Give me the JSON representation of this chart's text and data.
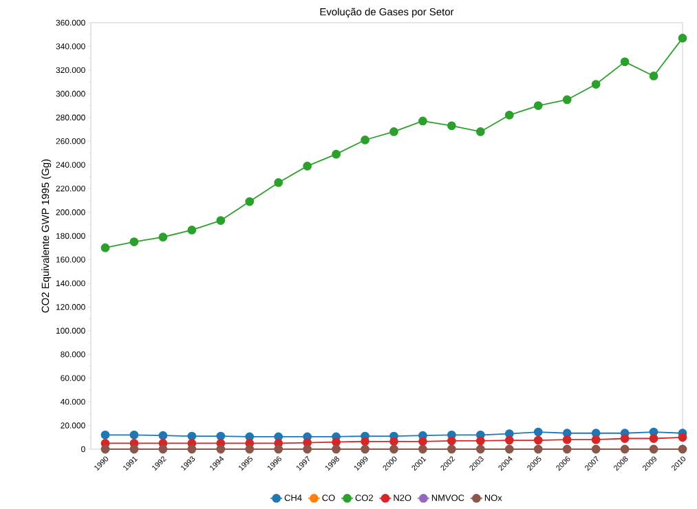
{
  "chart_data": {
    "type": "line",
    "title": "Evolução de Gases por Setor",
    "ylabel": "CO2 Equivalente GWP 1995 (Gg)",
    "x": [
      1990,
      1991,
      1992,
      1993,
      1994,
      1995,
      1996,
      1997,
      1998,
      1999,
      2000,
      2001,
      2002,
      2003,
      2004,
      2005,
      2006,
      2007,
      2008,
      2009,
      2010
    ],
    "xlim": [
      1989.5,
      2010
    ],
    "xticks": [
      1990,
      1991,
      1992,
      1993,
      1994,
      1995,
      1996,
      1997,
      1998,
      1999,
      2000,
      2001,
      2002,
      2003,
      2004,
      2005,
      2006,
      2007,
      2008,
      2009,
      2010
    ],
    "ylim": [
      0,
      360000
    ],
    "yticks": [
      {
        "value": 0,
        "label": "0"
      },
      {
        "value": 20000,
        "label": "20.000"
      },
      {
        "value": 40000,
        "label": "40.000"
      },
      {
        "value": 60000,
        "label": "60.000"
      },
      {
        "value": 80000,
        "label": "80.000"
      },
      {
        "value": 100000,
        "label": "100.000"
      },
      {
        "value": 120000,
        "label": "120.000"
      },
      {
        "value": 140000,
        "label": "140.000"
      },
      {
        "value": 160000,
        "label": "160.000"
      },
      {
        "value": 180000,
        "label": "180.000"
      },
      {
        "value": 200000,
        "label": "200.000"
      },
      {
        "value": 220000,
        "label": "220.000"
      },
      {
        "value": 240000,
        "label": "240.000"
      },
      {
        "value": 260000,
        "label": "260.000"
      },
      {
        "value": 280000,
        "label": "280.000"
      },
      {
        "value": 300000,
        "label": "300.000"
      },
      {
        "value": 320000,
        "label": "320.000"
      },
      {
        "value": 340000,
        "label": "340.000"
      },
      {
        "value": 360000,
        "label": "360.000"
      }
    ],
    "grid": false,
    "legend": "bottom",
    "marker": "circle",
    "line_style": "solid",
    "series": [
      {
        "name": "CH4",
        "color": "#1f77b4",
        "values": [
          12000,
          12000,
          11500,
          11000,
          11000,
          10500,
          10500,
          10500,
          10500,
          11000,
          11000,
          11500,
          12000,
          12000,
          13000,
          14500,
          13500,
          13500,
          13500,
          14500,
          13500
        ]
      },
      {
        "name": "CO",
        "color": "#ff7f0e",
        "values": [
          null,
          null,
          null,
          null,
          null,
          null,
          null,
          null,
          null,
          null,
          null,
          null,
          null,
          null,
          null,
          null,
          null,
          null,
          null,
          null,
          null
        ]
      },
      {
        "name": "CO2",
        "color": "#2ca02c",
        "values": [
          170000,
          175000,
          179000,
          185000,
          193000,
          209000,
          225000,
          239000,
          249000,
          261000,
          268000,
          277000,
          273000,
          268000,
          282000,
          290000,
          295000,
          308000,
          327000,
          315000,
          347000
        ]
      },
      {
        "name": "N2O",
        "color": "#d62728",
        "values": [
          5000,
          5000,
          5000,
          5000,
          5000,
          5000,
          5000,
          5500,
          6000,
          6500,
          6500,
          6500,
          7000,
          7000,
          7500,
          7500,
          8000,
          8000,
          9000,
          9000,
          10000
        ]
      },
      {
        "name": "NMVOC",
        "color": "#9467bd",
        "values": [
          null,
          null,
          null,
          null,
          null,
          null,
          null,
          null,
          null,
          null,
          null,
          null,
          null,
          null,
          null,
          null,
          null,
          null,
          null,
          null,
          null
        ]
      },
      {
        "name": "NOx",
        "color": "#8c564b",
        "values": [
          0,
          0,
          0,
          0,
          0,
          0,
          0,
          0,
          0,
          0,
          0,
          0,
          0,
          0,
          0,
          0,
          0,
          0,
          0,
          0,
          0
        ]
      }
    ]
  }
}
